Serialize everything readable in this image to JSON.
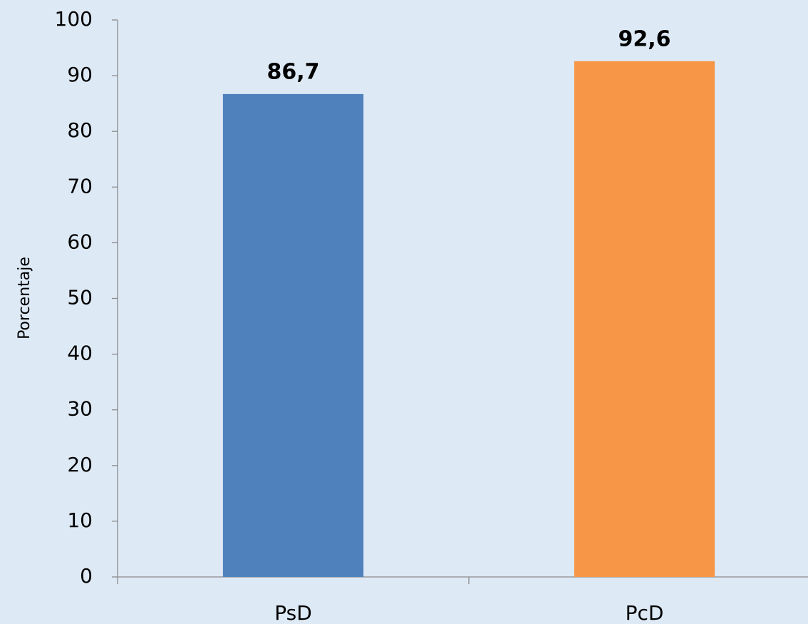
{
  "chart_data": {
    "type": "bar",
    "ylabel": "Porcentaje",
    "categories": [
      "PsD",
      "PcD"
    ],
    "values": [
      86.7,
      92.6
    ],
    "value_labels": [
      "86,7",
      "92,6"
    ],
    "colors": [
      "#4f81bd",
      "#f79646"
    ],
    "ylim": [
      0,
      100
    ],
    "yticks": [
      0,
      10,
      20,
      30,
      40,
      50,
      60,
      70,
      80,
      90,
      100
    ],
    "grid": false
  }
}
